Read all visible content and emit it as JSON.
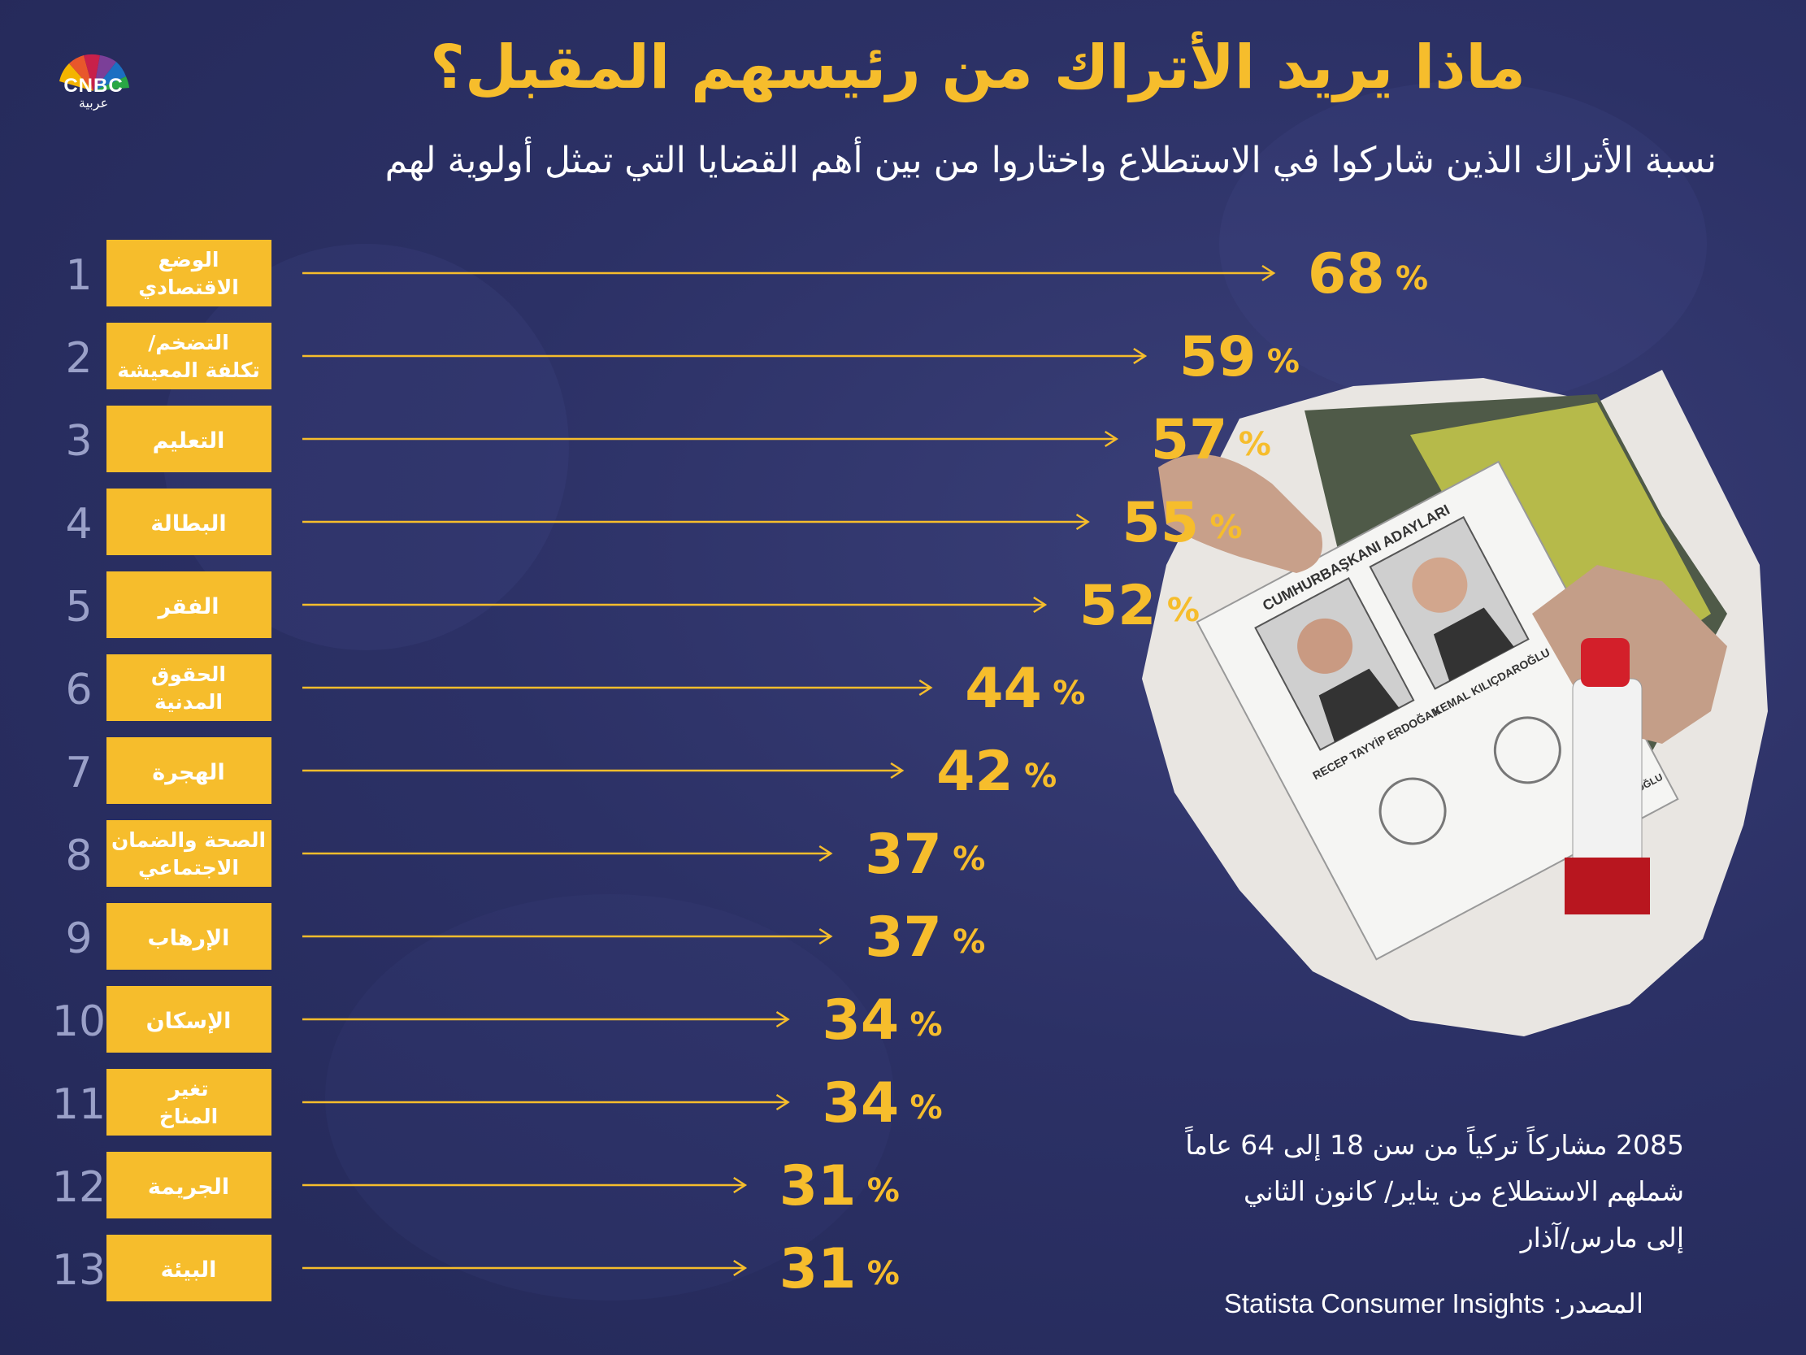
{
  "logo": {
    "brand": "CNBC",
    "sub": "عربية"
  },
  "chart_data": {
    "type": "bar",
    "title": "ماذا يريد الأتراك من رئيسهم المقبل؟",
    "subtitle": "نسبة الأتراك الذين شاركوا في الاستطلاع واختاروا من بين أهم القضايا التي تمثل أولوية لهم",
    "unit": "%",
    "orientation": "horizontal",
    "ylim": [
      0,
      100
    ],
    "categories": [
      {
        "rank": "1",
        "lines": [
          "الوضع",
          "الاقتصادي"
        ],
        "value": 68
      },
      {
        "rank": "2",
        "lines": [
          "التضخم/",
          "تكلفة المعيشة"
        ],
        "value": 59
      },
      {
        "rank": "3",
        "lines": [
          "التعليم"
        ],
        "value": 57
      },
      {
        "rank": "4",
        "lines": [
          "البطالة"
        ],
        "value": 55
      },
      {
        "rank": "5",
        "lines": [
          "الفقر"
        ],
        "value": 52
      },
      {
        "rank": "6",
        "lines": [
          "الحقوق",
          "المدنية"
        ],
        "value": 44
      },
      {
        "rank": "7",
        "lines": [
          "الهجرة"
        ],
        "value": 42
      },
      {
        "rank": "8",
        "lines": [
          "الصحة والضمان",
          "الاجتماعي"
        ],
        "value": 37
      },
      {
        "rank": "9",
        "lines": [
          "الإرهاب"
        ],
        "value": 37
      },
      {
        "rank": "10",
        "lines": [
          "الإسكان"
        ],
        "value": 34
      },
      {
        "rank": "11",
        "lines": [
          "تغير",
          "المناخ"
        ],
        "value": 34
      },
      {
        "rank": "12",
        "lines": [
          "الجريمة"
        ],
        "value": 31
      },
      {
        "rank": "13",
        "lines": [
          "البيئة"
        ],
        "value": 31
      }
    ]
  },
  "ballot": {
    "header": "CUMHURBAŞKANI ADAYLARI",
    "candidate_1": "KEMAL KILIÇDAROĞLU",
    "candidate_2": "RECEP TAYYİP ERDOĞAN",
    "candidate_3": "KILIÇDAROĞLU"
  },
  "note": {
    "line1": "2085 مشاركاً تركياً من سن 18 إلى 64 عاماً",
    "line2": "شملهم الاستطلاع من يناير/ كانون الثاني",
    "line3": "إلى مارس/آذار"
  },
  "source": {
    "label": "المصدر:",
    "value": "Statista Consumer Insights"
  },
  "colors": {
    "accent": "#f6bd2c",
    "background": "#2c3166",
    "text": "#ffffff",
    "rank": "#9aa0c8"
  }
}
